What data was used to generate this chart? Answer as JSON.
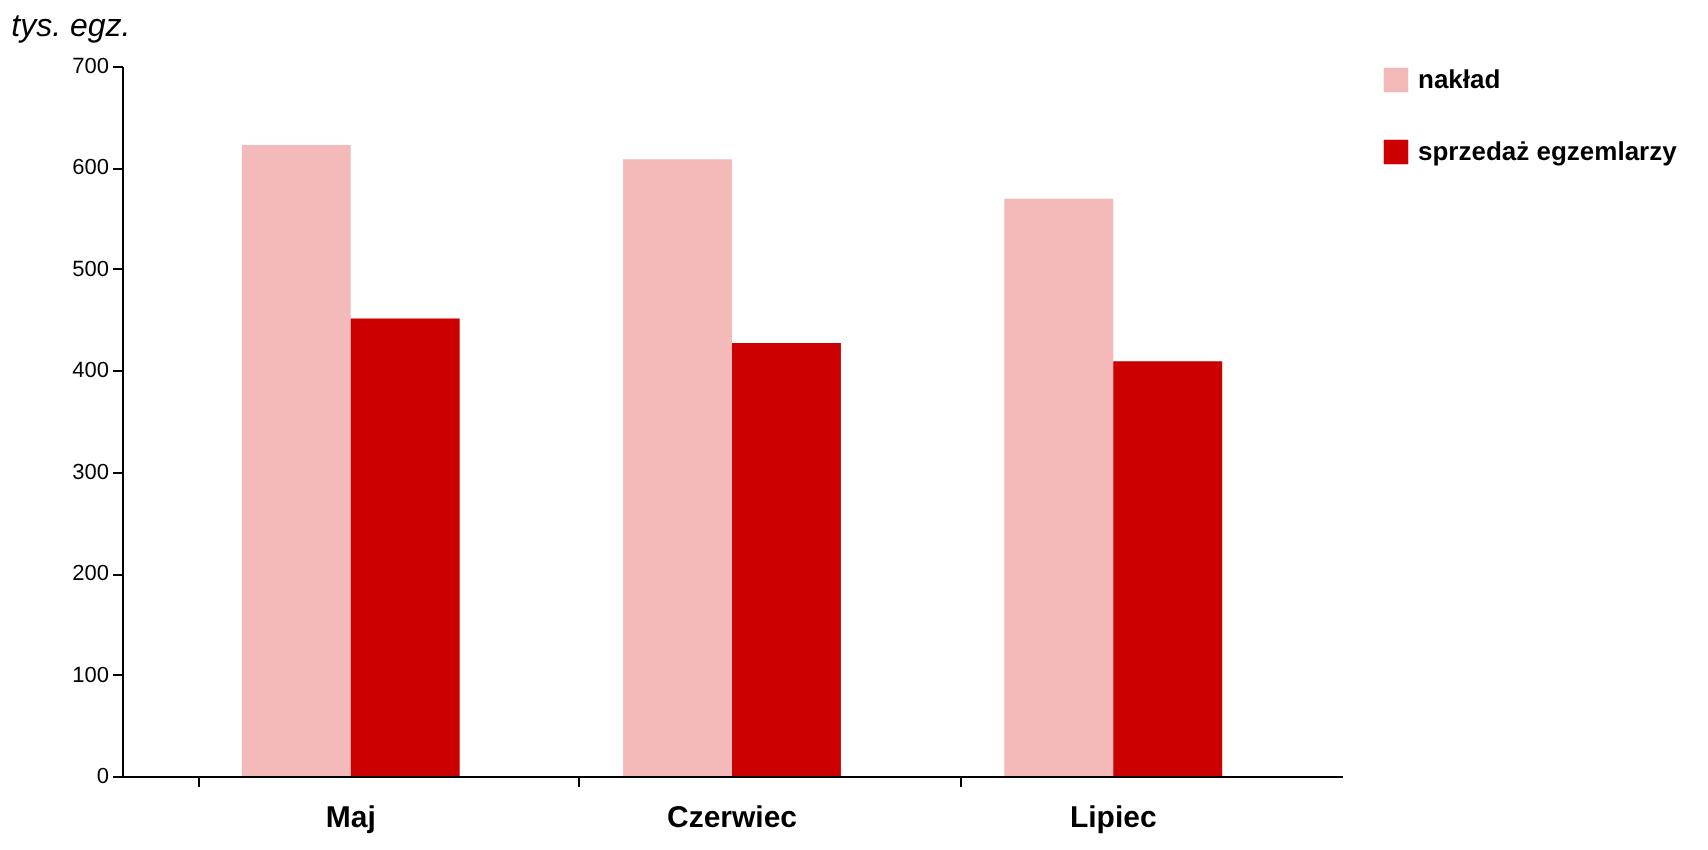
{
  "chart_data": {
    "type": "bar",
    "ylabel": "tys. egz.",
    "categories": [
      "Maj",
      "Czerwiec",
      "Lipiec"
    ],
    "series": [
      {
        "name": "nakład",
        "color": "#f4baba",
        "values": [
          622,
          608,
          569
        ]
      },
      {
        "name": "sprzedaż egzemlarzy",
        "color": "#cc0000",
        "values": [
          451,
          427,
          409
        ]
      }
    ],
    "ylim": [
      0,
      700
    ],
    "yticks": [
      0,
      100,
      200,
      300,
      400,
      500,
      600,
      700
    ],
    "grid": false,
    "legend": "right"
  }
}
